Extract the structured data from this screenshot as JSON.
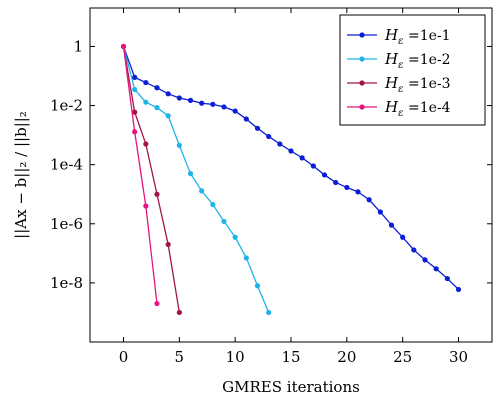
{
  "chart_data": {
    "type": "line",
    "xlabel": "GMRES iterations",
    "ylabel": "||Ax − b||₂ / ||b||₂",
    "y_scale": "log",
    "xlim": [
      -3,
      33
    ],
    "ylim": [
      1e-10,
      20
    ],
    "x_ticks": [
      0,
      5,
      10,
      15,
      20,
      25,
      30
    ],
    "x_tick_labels": [
      "0",
      "5",
      "10",
      "15",
      "20",
      "25",
      "30"
    ],
    "y_ticks": [
      1e-08,
      1e-06,
      0.0001,
      0.01,
      1
    ],
    "y_tick_labels": [
      "1e-8",
      "1e-6",
      "1e-4",
      "1e-2",
      "1"
    ],
    "grid": false,
    "legend_position": "top-right",
    "series": [
      {
        "name": "=1e-1",
        "color": "#0b1ed6",
        "x": [
          0,
          1,
          2,
          3,
          4,
          5,
          6,
          7,
          8,
          9,
          10,
          11,
          12,
          13,
          14,
          15,
          16,
          17,
          18,
          19,
          20,
          21,
          22,
          23,
          24,
          25,
          26,
          27,
          28,
          29,
          30
        ],
        "y": [
          1,
          0.09,
          0.06,
          0.04,
          0.025,
          0.018,
          0.015,
          0.012,
          0.011,
          0.009,
          0.0065,
          0.0035,
          0.0017,
          0.0009,
          0.0005,
          0.00029,
          0.00017,
          9e-05,
          4.5e-05,
          2.5e-05,
          1.7e-05,
          1.2e-05,
          6.5e-06,
          2.5e-06,
          9e-07,
          3.5e-07,
          1.3e-07,
          6e-08,
          3e-08,
          1.4e-08,
          6e-09
        ]
      },
      {
        "name": "=1e-2",
        "color": "#1fb4e8",
        "x": [
          0,
          1,
          2,
          3,
          4,
          5,
          6,
          7,
          8,
          9,
          10,
          11,
          12,
          13
        ],
        "y": [
          1,
          0.035,
          0.013,
          0.0085,
          0.0045,
          0.00045,
          5e-05,
          1.3e-05,
          4.5e-06,
          1.2e-06,
          3.5e-07,
          7e-08,
          8e-09,
          1e-09
        ]
      },
      {
        "name": "=1e-3",
        "color": "#a21549",
        "x": [
          0,
          1,
          2,
          3,
          4,
          5
        ],
        "y": [
          1,
          0.006,
          0.0005,
          1e-05,
          2e-07,
          1e-09
        ]
      },
      {
        "name": "=1e-4",
        "color": "#e5147f",
        "x": [
          0,
          1,
          2,
          3
        ],
        "y": [
          1,
          0.0013,
          4e-06,
          2e-09
        ]
      }
    ]
  }
}
